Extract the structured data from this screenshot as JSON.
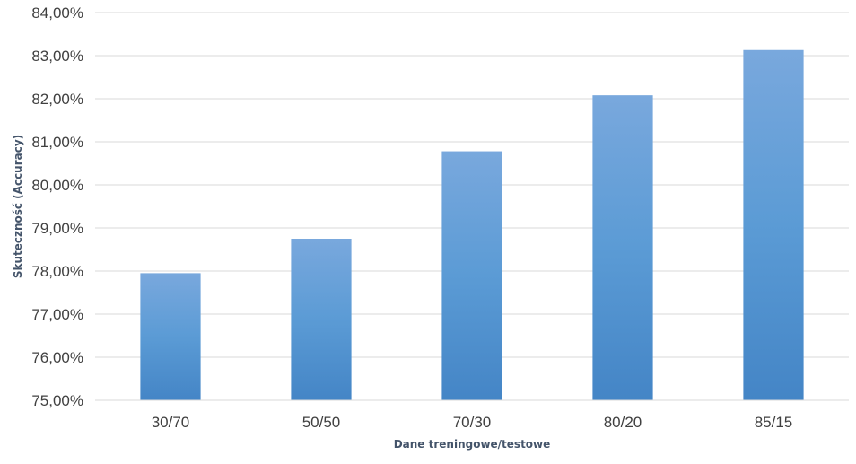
{
  "chart_data": {
    "type": "bar",
    "categories": [
      "30/70",
      "50/50",
      "70/30",
      "80/20",
      "85/15"
    ],
    "values": [
      77.95,
      78.75,
      80.78,
      82.08,
      83.13
    ],
    "xlabel": "Dane treningowe/testowe",
    "ylabel": "Skuteczność (Accuracy)",
    "ylim": [
      75,
      84
    ],
    "yticks": [
      "75,00%",
      "76,00%",
      "77,00%",
      "78,00%",
      "79,00%",
      "80,00%",
      "81,00%",
      "82,00%",
      "83,00%",
      "84,00%"
    ],
    "grid": true,
    "legend": "none",
    "colors": {
      "bar_top": "#79a8dd",
      "bar_mid": "#5b9bd5",
      "bar_bottom": "#4485c6"
    }
  }
}
